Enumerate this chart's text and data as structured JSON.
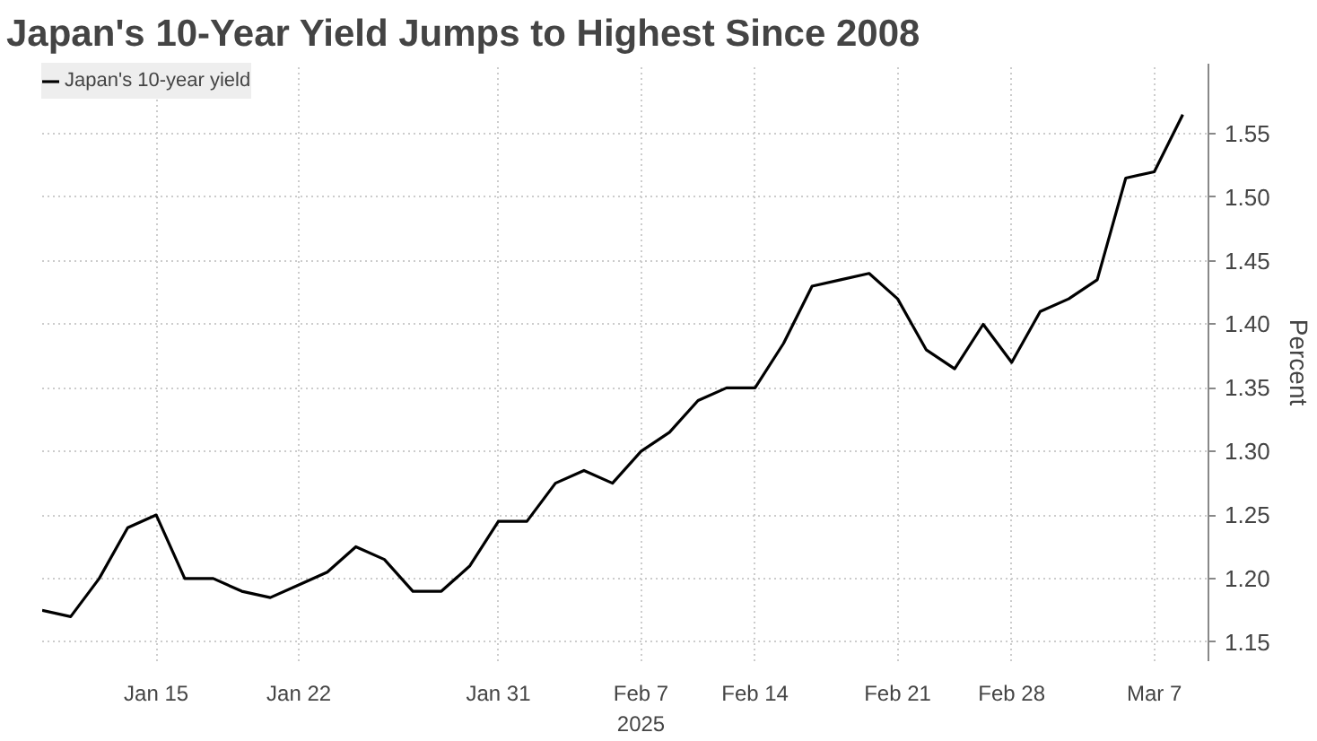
{
  "chart_data": {
    "type": "line",
    "title": "Japan's 10-Year Yield Jumps to Highest Since 2008",
    "ylabel": "Percent",
    "categories": [
      null,
      null,
      null,
      null,
      "Jan 15",
      null,
      null,
      null,
      null,
      "Jan 22",
      null,
      null,
      null,
      null,
      null,
      null,
      "Jan 31",
      null,
      null,
      null,
      null,
      "Feb 7\n2025",
      null,
      null,
      null,
      "Feb 14",
      null,
      null,
      null,
      null,
      "Feb 21",
      null,
      null,
      null,
      "Feb 28",
      null,
      null,
      null,
      null,
      "Mar 7",
      null
    ],
    "series": [
      {
        "name": "Japan's 10-year yield",
        "color": "#000000",
        "values": [
          1.175,
          1.17,
          1.2,
          1.24,
          1.25,
          1.2,
          1.2,
          1.19,
          1.185,
          1.195,
          1.205,
          1.225,
          1.215,
          1.19,
          1.19,
          1.21,
          1.245,
          1.245,
          1.275,
          1.285,
          1.275,
          1.3,
          1.315,
          1.34,
          1.35,
          1.35,
          1.385,
          1.43,
          1.435,
          1.44,
          1.42,
          1.38,
          1.365,
          1.4,
          1.37,
          1.41,
          1.42,
          1.435,
          1.515,
          1.52,
          1.565
        ]
      }
    ],
    "ylim": [
      1.135,
      1.605
    ],
    "yticks": [
      1.15,
      {
        "value": 1.2,
        "label": "1.20"
      },
      1.25,
      {
        "value": 1.3,
        "label": "1.30"
      },
      1.35,
      {
        "value": 1.4,
        "label": "1.40"
      },
      1.45,
      {
        "value": 1.5,
        "label": "1.50"
      },
      1.55
    ],
    "grid": true,
    "legend": "top left",
    "marker": "none",
    "line_style": "solid"
  }
}
